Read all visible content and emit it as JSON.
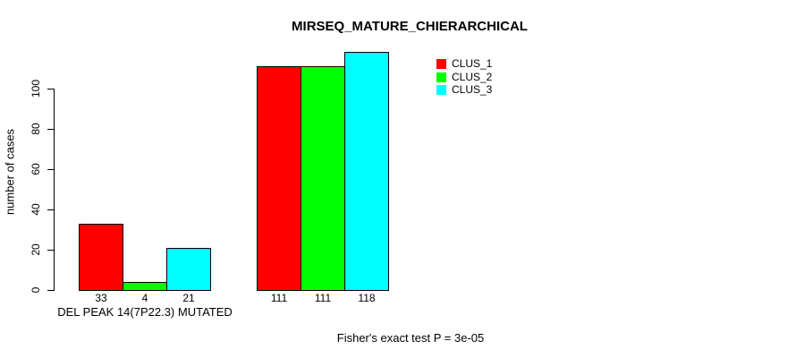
{
  "chart_data": {
    "type": "bar",
    "title": "MIRSEQ_MATURE_CHIERARCHICAL",
    "ylabel": "number of cases",
    "xlabel": "",
    "footer": "Fisher's exact test P = 3e-05",
    "categories": [
      "DEL PEAK 14(7P22.3) MUTATED",
      ""
    ],
    "series": [
      {
        "name": "CLUS_1",
        "color": "#ff0000",
        "values": [
          33,
          111
        ]
      },
      {
        "name": "CLUS_2",
        "color": "#00ff00",
        "values": [
          4,
          111
        ]
      },
      {
        "name": "CLUS_3",
        "color": "#00ffff",
        "values": [
          21,
          118
        ]
      }
    ],
    "yticks": [
      0,
      20,
      40,
      60,
      80,
      100
    ],
    "ylim": [
      0,
      120
    ],
    "bar_value_labels": true,
    "legend_position": "top-right",
    "grid": false,
    "background_color": "#ffffff",
    "axis_color": "#000000"
  }
}
